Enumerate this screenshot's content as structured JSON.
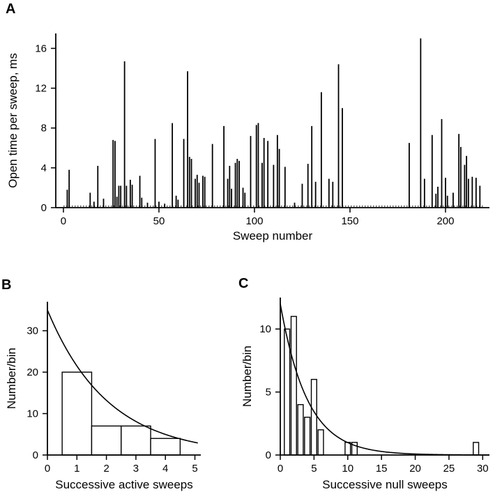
{
  "figure": {
    "background": "#ffffff",
    "ink": "#000000",
    "panels": {
      "a": {
        "label": "A"
      },
      "b": {
        "label": "B"
      },
      "c": {
        "label": "C"
      }
    }
  },
  "chart_data": [
    {
      "id": "panel_a",
      "type": "bar",
      "subtype": "spike",
      "title": "",
      "xlabel": "Sweep number",
      "ylabel": "Open time per sweep, ms",
      "xlim": [
        -4,
        223
      ],
      "ylim": [
        0,
        17.5
      ],
      "xticks": [
        0,
        50,
        100,
        150,
        200
      ],
      "yticks": [
        0,
        4,
        8,
        12,
        16
      ],
      "baseline_dotted": {
        "y": 0.15,
        "x_from": 0,
        "x_to": 220
      },
      "points": [
        [
          2,
          1.8
        ],
        [
          3,
          3.8
        ],
        [
          14,
          1.5
        ],
        [
          16,
          0.6
        ],
        [
          18,
          4.2
        ],
        [
          21,
          0.9
        ],
        [
          26,
          6.8
        ],
        [
          27,
          6.7
        ],
        [
          28,
          1.1
        ],
        [
          29,
          2.2
        ],
        [
          30,
          2.2
        ],
        [
          32,
          14.7
        ],
        [
          33,
          2.2
        ],
        [
          35,
          2.8
        ],
        [
          36,
          2.3
        ],
        [
          40,
          3.2
        ],
        [
          41,
          1.0
        ],
        [
          44,
          0.5
        ],
        [
          48,
          6.9
        ],
        [
          50,
          0.6
        ],
        [
          53,
          0.4
        ],
        [
          57,
          8.5
        ],
        [
          59,
          1.2
        ],
        [
          60,
          0.8
        ],
        [
          63,
          6.9
        ],
        [
          65,
          13.7
        ],
        [
          66,
          5.1
        ],
        [
          67,
          4.9
        ],
        [
          69,
          2.9
        ],
        [
          70,
          3.3
        ],
        [
          71,
          2.5
        ],
        [
          73,
          3.2
        ],
        [
          74,
          3.1
        ],
        [
          78,
          6.4
        ],
        [
          84,
          8.2
        ],
        [
          86,
          2.9
        ],
        [
          87,
          4.2
        ],
        [
          88,
          1.9
        ],
        [
          90,
          4.5
        ],
        [
          91,
          4.9
        ],
        [
          92,
          4.7
        ],
        [
          94,
          2.0
        ],
        [
          95,
          1.5
        ],
        [
          98,
          7.2
        ],
        [
          101,
          8.3
        ],
        [
          102,
          8.5
        ],
        [
          104,
          4.5
        ],
        [
          105,
          7.0
        ],
        [
          107,
          6.7
        ],
        [
          110,
          4.3
        ],
        [
          112,
          7.3
        ],
        [
          113,
          5.9
        ],
        [
          116,
          4.1
        ],
        [
          121,
          0.5
        ],
        [
          125,
          2.4
        ],
        [
          128,
          4.4
        ],
        [
          130,
          8.2
        ],
        [
          132,
          2.6
        ],
        [
          135,
          11.6
        ],
        [
          139,
          2.9
        ],
        [
          141,
          2.6
        ],
        [
          144,
          14.4
        ],
        [
          146,
          10.0
        ],
        [
          181,
          6.5
        ],
        [
          187,
          17.0
        ],
        [
          189,
          2.9
        ],
        [
          193,
          7.3
        ],
        [
          195,
          1.4
        ],
        [
          196,
          2.1
        ],
        [
          198,
          8.9
        ],
        [
          200,
          3.0
        ],
        [
          201,
          1.2
        ],
        [
          204,
          1.5
        ],
        [
          207,
          7.4
        ],
        [
          208,
          6.1
        ],
        [
          210,
          4.3
        ],
        [
          211,
          5.2
        ],
        [
          212,
          2.9
        ],
        [
          214,
          3.1
        ],
        [
          216,
          3.0
        ],
        [
          218,
          2.2
        ]
      ]
    },
    {
      "id": "panel_b",
      "type": "bar",
      "subtype": "histogram",
      "title": "",
      "xlabel": "Successive active sweeps",
      "ylabel": "Number/bin",
      "xlim": [
        0,
        5.2
      ],
      "ylim": [
        0,
        37
      ],
      "xticks": [
        0,
        1,
        2,
        3,
        4,
        5
      ],
      "yticks": [
        0,
        10,
        20,
        30
      ],
      "bars": [
        {
          "x0": 0.5,
          "x1": 1.5,
          "y": 20
        },
        {
          "x0": 1.5,
          "x1": 2.5,
          "y": 7
        },
        {
          "x0": 2.5,
          "x1": 3.5,
          "y": 7
        },
        {
          "x0": 3.5,
          "x1": 4.5,
          "y": 4
        }
      ],
      "fit_curve": {
        "model": "exponential",
        "y0": 35,
        "tau": 2.05,
        "x_min": 0,
        "x_max": 5.1
      }
    },
    {
      "id": "panel_c",
      "type": "bar",
      "subtype": "histogram",
      "title": "",
      "xlabel": "Successive null sweeps",
      "ylabel": "Number/bin",
      "xlim": [
        0,
        31
      ],
      "ylim": [
        0,
        12.5
      ],
      "xticks": [
        0,
        5,
        10,
        15,
        20,
        25,
        30
      ],
      "yticks": [
        0,
        5,
        10
      ],
      "bars": [
        {
          "x0": 0.6,
          "x1": 1.4,
          "y": 10
        },
        {
          "x0": 1.6,
          "x1": 2.4,
          "y": 11
        },
        {
          "x0": 2.6,
          "x1": 3.4,
          "y": 4
        },
        {
          "x0": 3.6,
          "x1": 4.4,
          "y": 3
        },
        {
          "x0": 4.6,
          "x1": 5.4,
          "y": 6
        },
        {
          "x0": 5.6,
          "x1": 6.4,
          "y": 2
        },
        {
          "x0": 9.6,
          "x1": 10.4,
          "y": 1
        },
        {
          "x0": 10.6,
          "x1": 11.4,
          "y": 1
        },
        {
          "x0": 28.6,
          "x1": 29.4,
          "y": 1
        }
      ],
      "fit_curve": {
        "model": "exponential",
        "y0": 12,
        "tau": 4.0,
        "x_min": 0,
        "x_max": 31
      }
    }
  ]
}
